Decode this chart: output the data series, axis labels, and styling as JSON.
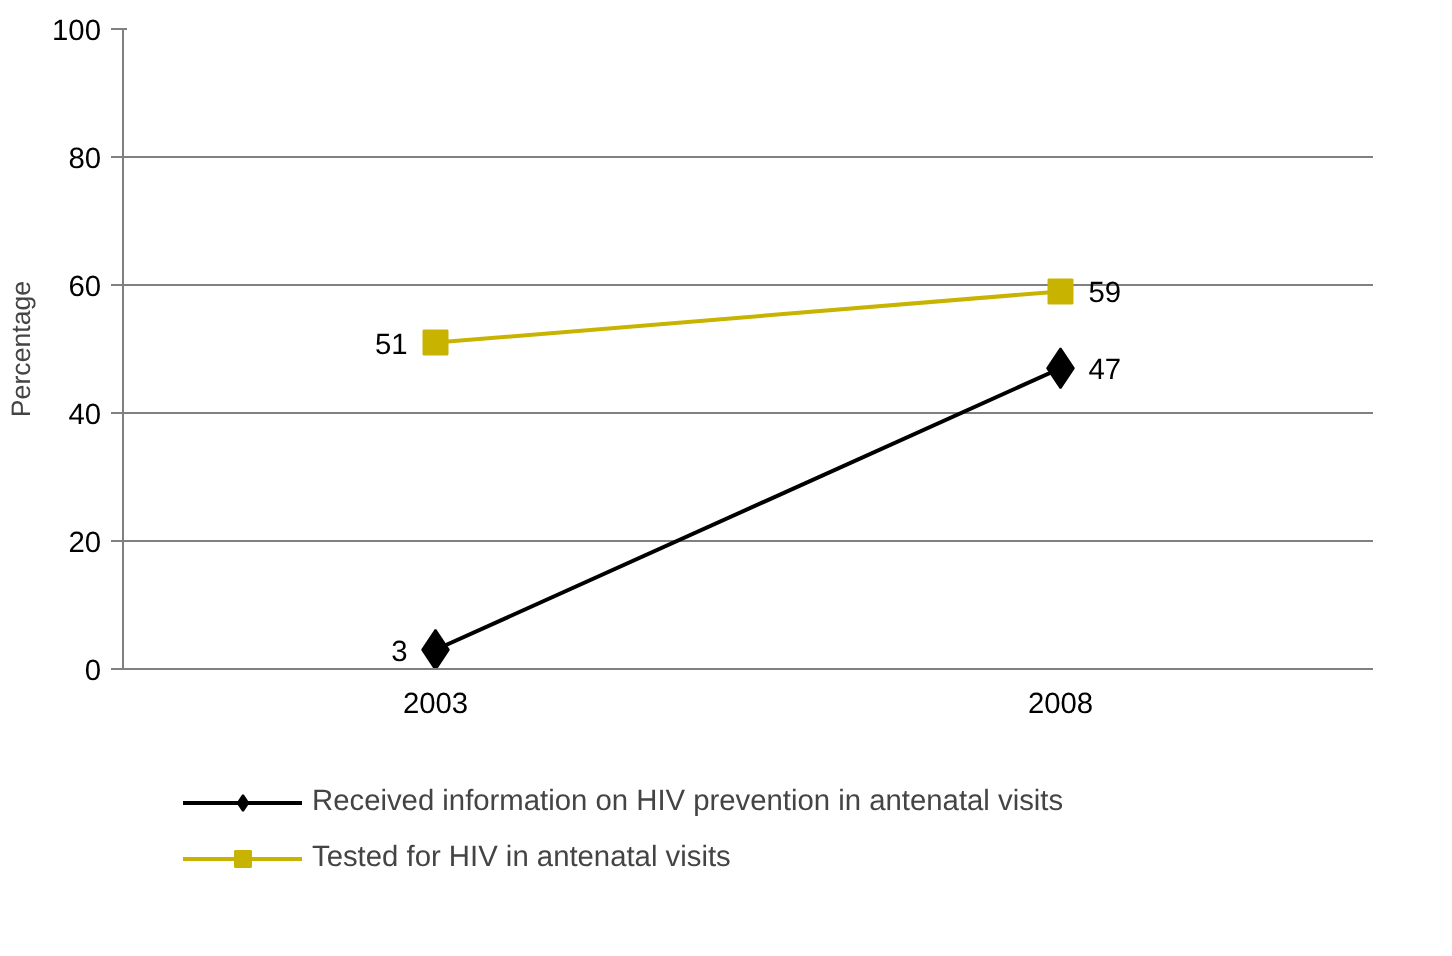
{
  "chart_data": {
    "type": "line",
    "ylabel": "Percentage",
    "categories": [
      "2003",
      "2008"
    ],
    "series": [
      {
        "name": "Received information on HIV prevention in antenatal visits",
        "color": "#000000",
        "marker": "diamond",
        "values": [
          3,
          47
        ]
      },
      {
        "name": "Tested for HIV in antenatal visits",
        "color": "#c8b400",
        "marker": "square",
        "values": [
          51,
          59
        ]
      }
    ],
    "ylim": [
      0,
      100
    ],
    "yticks": [
      0,
      20,
      40,
      60,
      80,
      100
    ],
    "grid": "y",
    "legend": "bottom",
    "data_labels": true,
    "line_style": "solid"
  }
}
